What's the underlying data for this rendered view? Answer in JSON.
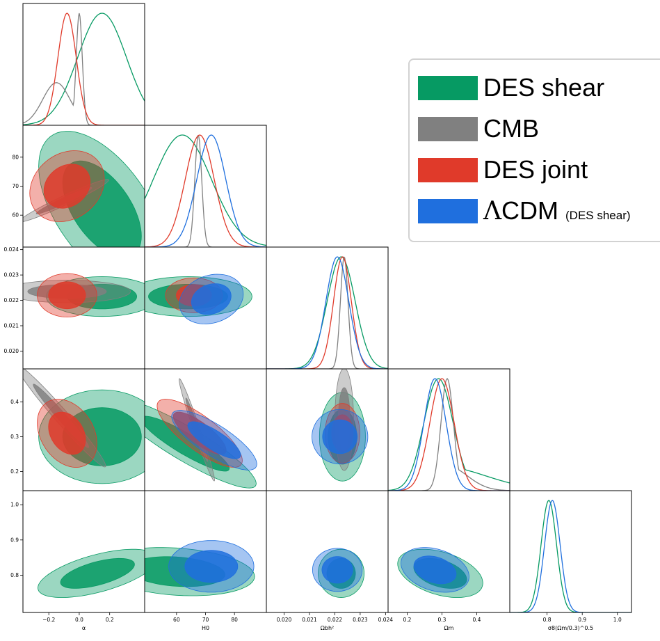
{
  "colors": {
    "des_shear": "#069a63",
    "cmb": "#808080",
    "des_joint": "#e03a2a",
    "lcdm": "#1f6fde"
  },
  "legend": {
    "items": [
      {
        "label": "DES shear",
        "color": "#069a63"
      },
      {
        "label": "CMB",
        "color": "#808080"
      },
      {
        "label": "DES joint",
        "color": "#e03a2a"
      },
      {
        "label": "CDM",
        "prefix": "Λ",
        "suffix": "(DES shear)",
        "color": "#1f6fde"
      }
    ]
  },
  "chart_data": {
    "type": "corner",
    "parameters": [
      {
        "key": "alpha",
        "label": "α",
        "range": [
          -0.37,
          0.43
        ],
        "ticks": [
          -0.2,
          0.0,
          0.2
        ],
        "tick_labels": [
          "−0.2",
          "0.0",
          "0.2"
        ]
      },
      {
        "key": "H0",
        "label": "H0",
        "range": [
          49,
          91
        ],
        "ticks": [
          60,
          70,
          80
        ],
        "tick_labels": [
          "60",
          "70",
          "80"
        ]
      },
      {
        "key": "ombh2",
        "label": "Ωbh²",
        "range": [
          0.0193,
          0.0241
        ],
        "ticks": [
          0.02,
          0.021,
          0.022,
          0.023,
          0.024
        ],
        "tick_labels": [
          "0.020",
          "0.021",
          "0.022",
          "0.023",
          "0.024"
        ]
      },
      {
        "key": "Om",
        "label": "Ωm",
        "range": [
          0.145,
          0.495
        ],
        "ticks": [
          0.2,
          0.3,
          0.4
        ],
        "tick_labels": [
          "0.2",
          "0.3",
          "0.4"
        ]
      },
      {
        "key": "S8",
        "label": "σ8(Ωm/0.3)^0.5",
        "range": [
          0.694,
          1.04
        ],
        "ticks": [
          0.8,
          0.9,
          1.0
        ],
        "tick_labels": [
          "0.8",
          "0.9",
          "1.0"
        ]
      }
    ],
    "series": [
      {
        "name": "DES shear",
        "color": "#069a63",
        "marginals": {
          "alpha": {
            "mean": 0.15,
            "sd": 0.16
          },
          "H0": {
            "mean": 62,
            "sd": 10
          },
          "ombh2": {
            "mean": 0.02225,
            "sd": 0.00055
          },
          "Om": {
            "mean": 0.29,
            "sd": 0.042,
            "tail": 0.45
          },
          "S8": {
            "mean": 0.805,
            "sd": 0.022
          }
        },
        "contours": {
          "H0-alpha": {
            "center": [
              0.15,
              62
            ],
            "sd": [
              0.17,
              11
            ],
            "rho": -0.55
          },
          "ombh2-alpha": {
            "center": [
              0.15,
              0.02215
            ],
            "sd": [
              0.15,
              0.00032
            ],
            "rho": 0.0
          },
          "ombh2-H0": {
            "center": [
              64,
              0.02215
            ],
            "sd": [
              9,
              0.00032
            ],
            "rho": 0.0
          },
          "Om-alpha": {
            "center": [
              0.15,
              0.3
            ],
            "sd": [
              0.17,
              0.055
            ],
            "rho": 0.0
          },
          "Om-H0": {
            "center": [
              63,
              0.28
            ],
            "sd": [
              10,
              0.052
            ],
            "rho": -0.9
          },
          "Om-ombh2": {
            "center": [
              0.0223,
              0.3
            ],
            "sd": [
              0.00037,
              0.052
            ],
            "rho": 0.0
          },
          "S8-alpha": {
            "center": [
              0.12,
              0.805
            ],
            "sd": [
              0.16,
              0.028
            ],
            "rho": 0.6
          },
          "S8-H0": {
            "center": [
              60,
              0.81
            ],
            "sd": [
              11,
              0.028
            ],
            "rho": -0.2
          },
          "S8-ombh2": {
            "center": [
              0.02225,
              0.805
            ],
            "sd": [
              0.00037,
              0.028
            ],
            "rho": 0.0
          },
          "S8-Om": {
            "center": [
              0.295,
              0.805
            ],
            "sd": [
              0.05,
              0.028
            ],
            "rho": -0.4
          }
        }
      },
      {
        "name": "CMB",
        "color": "#808080",
        "marginals": {
          "alpha": {
            "mean": 0.0,
            "sd": 0.02,
            "shoulder": -0.15
          },
          "H0": {
            "mean": 67.5,
            "sd": 1.2
          },
          "ombh2": {
            "mean": 0.02237,
            "sd": 0.00015
          },
          "Om": {
            "mean": 0.315,
            "sd": 0.018,
            "tail": 0.42
          }
        },
        "contours": {
          "H0-alpha": {
            "center": [
              -0.1,
              65
            ],
            "sd": [
              0.12,
              3
            ],
            "rho": 0.97
          },
          "ombh2-alpha": {
            "center": [
              -0.08,
              0.02235
            ],
            "sd": [
              0.17,
              0.00018
            ],
            "rho": 0.0
          },
          "Om-alpha": {
            "center": [
              -0.12,
              0.36
            ],
            "sd": [
              0.12,
              0.06
            ],
            "rho": -0.98
          },
          "Om-H0": {
            "center": [
              67,
              0.32
            ],
            "sd": [
              2.5,
              0.06
            ],
            "rho": -0.98
          },
          "Om-ombh2": {
            "center": [
              0.02237,
              0.35
            ],
            "sd": [
              0.00015,
              0.06
            ],
            "rho": 0.0
          }
        }
      },
      {
        "name": "DES joint",
        "color": "#e03a2a",
        "marginals": {
          "alpha": {
            "mean": -0.08,
            "sd": 0.06
          },
          "H0": {
            "mean": 68,
            "sd": 5
          },
          "ombh2": {
            "mean": 0.0223,
            "sd": 0.00035
          },
          "Om": {
            "mean": 0.3,
            "sd": 0.035
          }
        },
        "contours": {
          "H0-alpha": {
            "center": [
              -0.08,
              70
            ],
            "sd": [
              0.1,
              5
            ],
            "rho": 0.2
          },
          "ombh2-alpha": {
            "center": [
              -0.08,
              0.0222
            ],
            "sd": [
              0.08,
              0.00035
            ],
            "rho": 0.0
          },
          "ombh2-H0": {
            "center": [
              66,
              0.0222
            ],
            "sd": [
              4,
              0.00028
            ],
            "rho": 0.0
          },
          "Om-alpha": {
            "center": [
              -0.08,
              0.31
            ],
            "sd": [
              0.08,
              0.04
            ],
            "rho": -0.3
          },
          "Om-H0": {
            "center": [
              68,
              0.31
            ],
            "sd": [
              6,
              0.04
            ],
            "rho": -0.8
          },
          "Om-ombh2": {
            "center": [
              0.0223,
              0.31
            ],
            "sd": [
              0.00028,
              0.035
            ],
            "rho": 0.0
          }
        }
      },
      {
        "name": "ΛCDM (DES shear)",
        "color": "#1f6fde",
        "marginals": {
          "H0": {
            "mean": 72,
            "sd": 5
          },
          "ombh2": {
            "mean": 0.0221,
            "sd": 0.00045
          },
          "Om": {
            "mean": 0.28,
            "sd": 0.032
          },
          "S8": {
            "mean": 0.815,
            "sd": 0.022
          }
        },
        "contours": {
          "ombh2-H0": {
            "center": [
              72,
              0.02205
            ],
            "sd": [
              4.5,
              0.0004
            ],
            "rho": 0.2
          },
          "Om-H0": {
            "center": [
              73,
              0.29
            ],
            "sd": [
              6,
              0.035
            ],
            "rho": -0.8
          },
          "Om-ombh2": {
            "center": [
              0.0222,
              0.3
            ],
            "sd": [
              0.00045,
              0.032
            ],
            "rho": 0.0
          },
          "S8-H0": {
            "center": [
              72,
              0.825
            ],
            "sd": [
              6,
              0.03
            ],
            "rho": 0.0
          },
          "S8-ombh2": {
            "center": [
              0.0221,
              0.815
            ],
            "sd": [
              0.0004,
              0.025
            ],
            "rho": 0.0
          },
          "S8-Om": {
            "center": [
              0.28,
              0.815
            ],
            "sd": [
              0.04,
              0.026
            ],
            "rho": -0.3
          }
        }
      }
    ],
    "levels": [
      "68%",
      "95%"
    ]
  }
}
